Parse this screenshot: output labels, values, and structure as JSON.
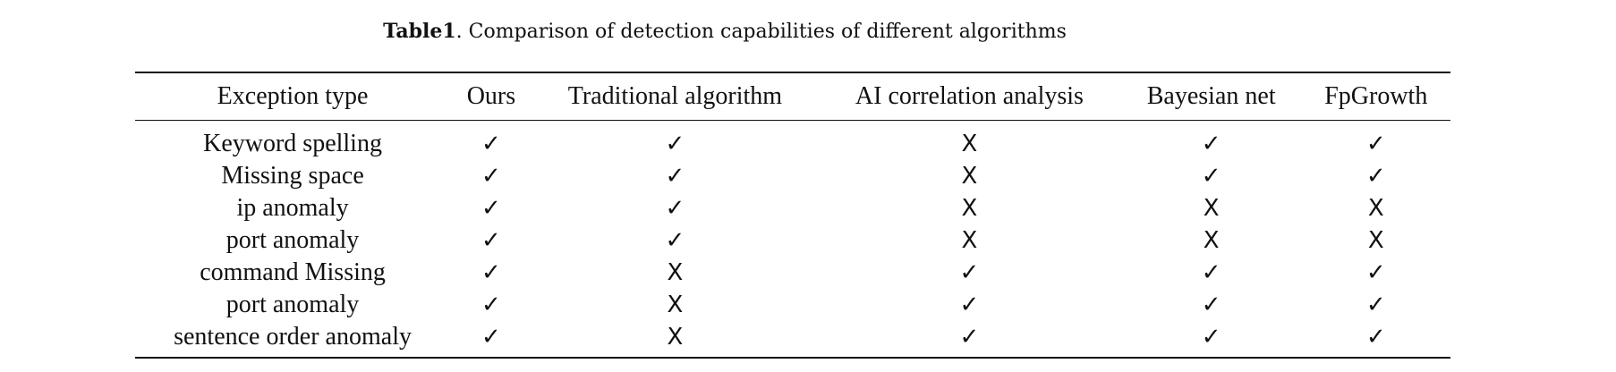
{
  "caption": {
    "label": "Table1",
    "text": ". Comparison of detection capabilities of different algorithms"
  },
  "symbols": {
    "yes": "✓",
    "no": "X"
  },
  "table": {
    "headers": [
      "Exception type",
      "Ours",
      "Traditional algorithm",
      "AI correlation analysis",
      "Bayesian net",
      "FpGrowth"
    ],
    "rows": [
      {
        "type": "Keyword spelling",
        "marks": [
          "yes",
          "yes",
          "no",
          "yes",
          "yes"
        ]
      },
      {
        "type": "Missing space",
        "marks": [
          "yes",
          "yes",
          "no",
          "yes",
          "yes"
        ]
      },
      {
        "type": "ip anomaly",
        "marks": [
          "yes",
          "yes",
          "no",
          "no",
          "no"
        ]
      },
      {
        "type": "port anomaly",
        "marks": [
          "yes",
          "yes",
          "no",
          "no",
          "no"
        ]
      },
      {
        "type": "command Missing",
        "marks": [
          "yes",
          "no",
          "yes",
          "yes",
          "yes"
        ]
      },
      {
        "type": "port anomaly",
        "marks": [
          "yes",
          "no",
          "yes",
          "yes",
          "yes"
        ]
      },
      {
        "type": "sentence order anomaly",
        "marks": [
          "yes",
          "no",
          "yes",
          "yes",
          "yes"
        ]
      }
    ]
  }
}
